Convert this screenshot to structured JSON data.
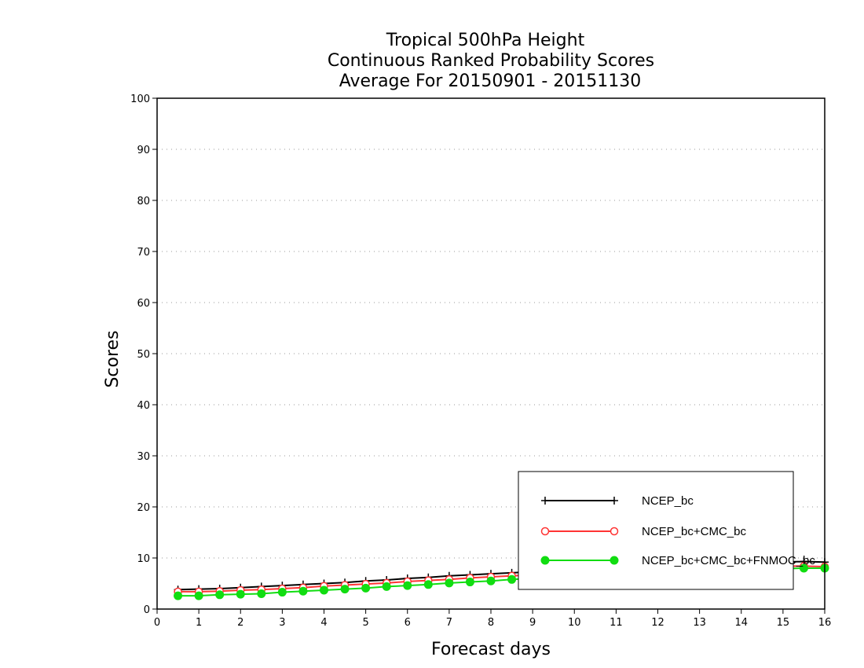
{
  "chart_data": {
    "type": "line",
    "title_lines": [
      "Tropical 500hPa Height",
      "Continuous Ranked Probability Scores",
      "Average For 20150901 - 20151130"
    ],
    "xlabel": "Forecast days",
    "ylabel": "Scores",
    "xlim": [
      0,
      16
    ],
    "ylim": [
      0,
      100
    ],
    "x_ticks": [
      0,
      1,
      2,
      3,
      4,
      5,
      6,
      7,
      8,
      9,
      10,
      11,
      12,
      13,
      14,
      15,
      16
    ],
    "y_ticks": [
      0,
      10,
      20,
      30,
      40,
      50,
      60,
      70,
      80,
      90,
      100
    ],
    "grid": "horizontal-dotted",
    "legend_position": "bottom-right",
    "x": [
      0.5,
      1,
      1.5,
      2,
      2.5,
      3,
      3.5,
      4,
      4.5,
      5,
      5.5,
      6,
      6.5,
      7,
      7.5,
      8,
      8.5,
      9,
      9.5,
      10,
      10.5,
      11,
      11.5,
      12,
      12.5,
      13,
      13.5,
      14,
      14.5,
      15,
      15.5,
      16
    ],
    "series": [
      {
        "name": "NCEP_bc",
        "color": "#000000",
        "marker": "plus",
        "values": [
          3.8,
          3.9,
          4.0,
          4.2,
          4.4,
          4.6,
          4.8,
          5.0,
          5.2,
          5.5,
          5.7,
          6.0,
          6.2,
          6.5,
          6.7,
          6.9,
          7.1,
          7.3,
          7.5,
          7.7,
          7.9,
          8.0,
          8.2,
          8.4,
          8.6,
          8.8,
          8.9,
          9.0,
          9.1,
          9.2,
          9.3,
          9.2
        ]
      },
      {
        "name": "NCEP_bc+CMC_bc",
        "color": "#ff3333",
        "marker": "open-circle",
        "values": [
          3.4,
          3.4,
          3.5,
          3.7,
          3.8,
          4.0,
          4.2,
          4.5,
          4.7,
          4.9,
          5.1,
          5.4,
          5.6,
          5.8,
          6.1,
          6.3,
          6.5,
          6.7,
          6.9,
          7.0,
          7.2,
          7.4,
          7.5,
          7.7,
          7.8,
          8.0,
          8.1,
          8.2,
          8.3,
          8.4,
          8.4,
          8.3
        ]
      },
      {
        "name": "NCEP_bc+CMC_bc+FNMOC_bc",
        "color": "#11dd11",
        "marker": "filled-circle",
        "values": [
          2.6,
          2.6,
          2.8,
          2.9,
          3.0,
          3.3,
          3.5,
          3.7,
          3.9,
          4.1,
          4.4,
          4.6,
          4.8,
          5.1,
          5.3,
          5.5,
          5.8,
          6.0,
          6.2,
          6.4,
          6.6,
          6.8,
          6.9,
          7.1,
          7.3,
          7.4,
          7.6,
          7.7,
          7.8,
          7.9,
          8.0,
          8.0
        ]
      }
    ]
  }
}
